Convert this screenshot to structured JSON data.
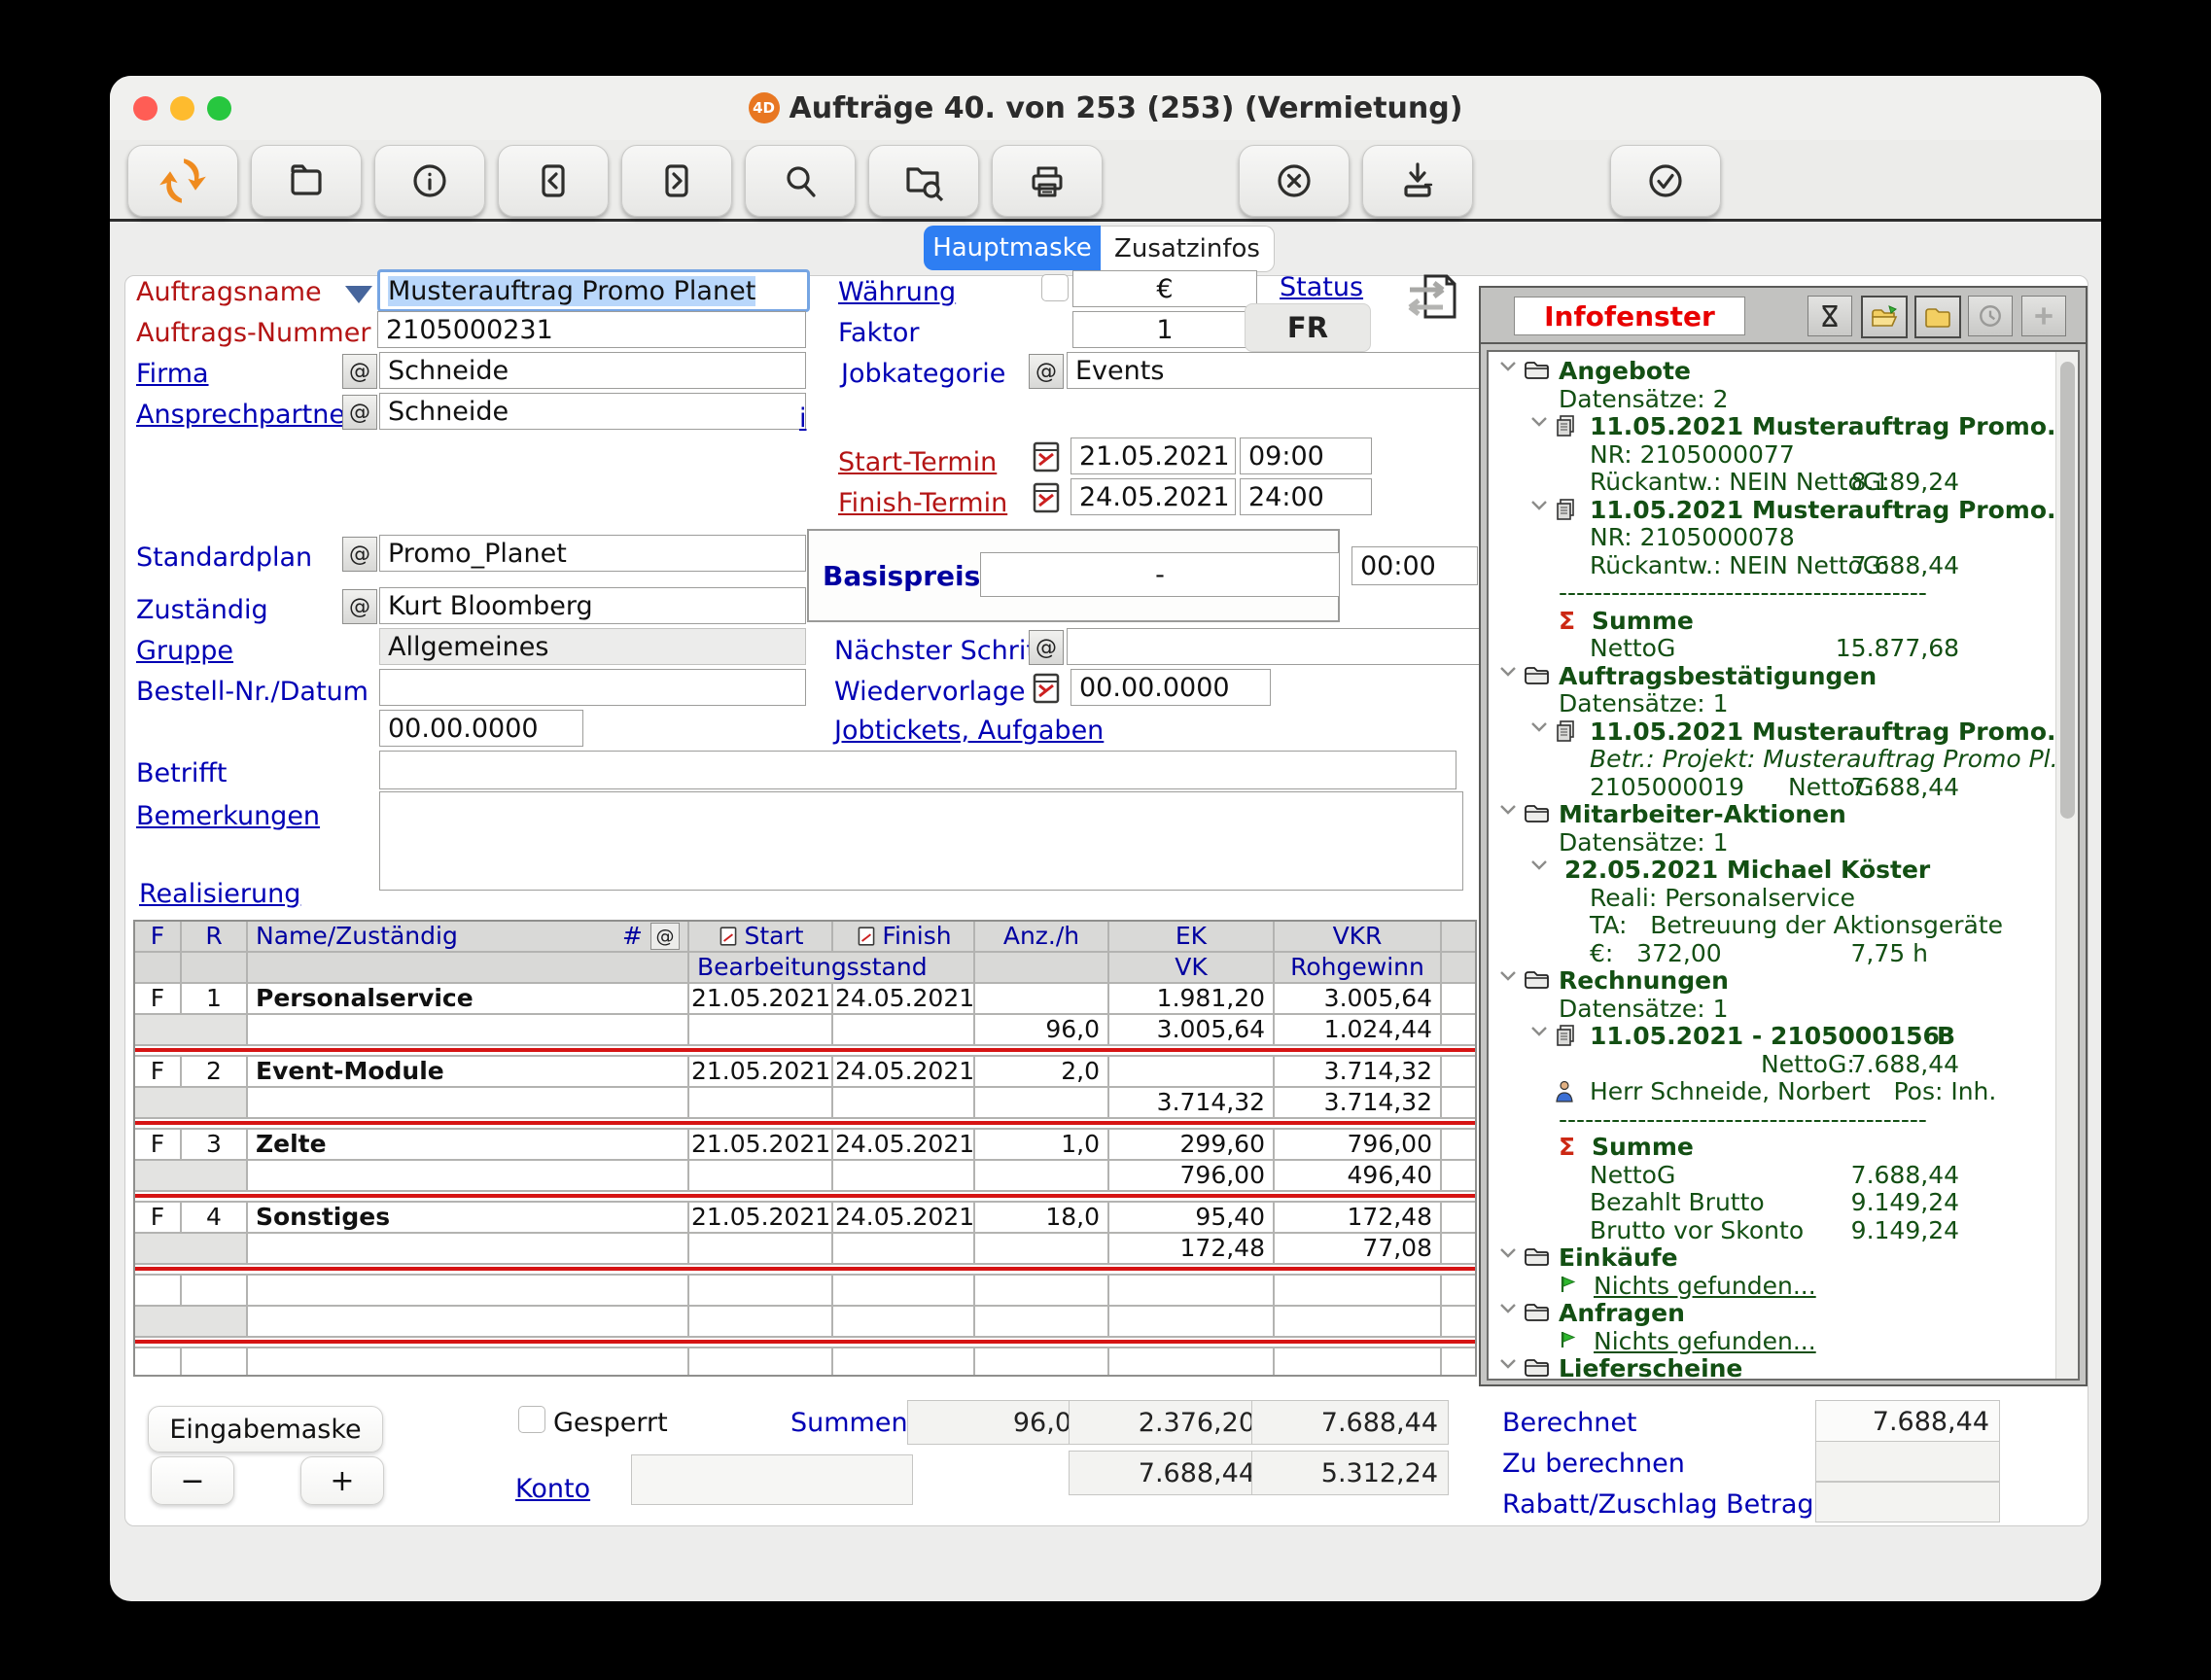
{
  "window": {
    "title": "Aufträge 40. von 253 (253) (Vermietung)",
    "badge": "4D"
  },
  "toolbar": {
    "buttons": [
      {
        "name": "logo-4d-button",
        "icon": "logo-4d-icon"
      },
      {
        "name": "new-record-button",
        "icon": "folder-icon"
      },
      {
        "name": "info-button",
        "icon": "info-icon"
      },
      {
        "name": "previous-record-button",
        "icon": "chevron-left-icon"
      },
      {
        "name": "next-record-button",
        "icon": "chevron-right-icon"
      },
      {
        "name": "search-button",
        "icon": "magnifier-icon"
      },
      {
        "name": "search-folder-button",
        "icon": "folder-magnifier-icon"
      },
      {
        "name": "print-button",
        "icon": "printer-icon"
      },
      {
        "name": "cancel-button",
        "icon": "circle-x-icon"
      },
      {
        "name": "export-button",
        "icon": "download-tray-icon"
      },
      {
        "name": "accept-button",
        "icon": "circle-check-icon"
      }
    ]
  },
  "tabs": {
    "items": [
      {
        "label": "Hauptmaske",
        "active": true
      },
      {
        "label": "Zusatzinfos",
        "active": false
      }
    ]
  },
  "form": {
    "auftragsname": {
      "label": "Auftragsname",
      "value": "Musterauftrag Promo Planet"
    },
    "auftrags_nummer": {
      "label": "Auftrags-Nummer",
      "value": "2105000231"
    },
    "firma": {
      "label": "Firma",
      "value": "Schneide"
    },
    "ansprechpartner": {
      "label": "Ansprechpartner",
      "value": "Schneide",
      "info_link": "i"
    },
    "waehrung": {
      "label": "Währung",
      "value": "€"
    },
    "faktor": {
      "label": "Faktor",
      "value": "1"
    },
    "status": {
      "label": "Status",
      "value": "FR"
    },
    "jobkategorie": {
      "label": "Jobkategorie",
      "value": "Events"
    },
    "start_termin": {
      "label": "Start-Termin",
      "date": "21.05.2021",
      "time": "09:00"
    },
    "finish_termin": {
      "label": "Finish-Termin",
      "date": "24.05.2021",
      "time": "24:00"
    },
    "standardplan": {
      "label": "Standardplan",
      "value": "Promo_Planet"
    },
    "basispreis": {
      "label": "Basispreis",
      "value": "-",
      "time": "00:00"
    },
    "zustaendig": {
      "label": "Zuständig",
      "value": "Kurt Bloomberg"
    },
    "gruppe": {
      "label": "Gruppe",
      "value": "Allgemeines"
    },
    "naechster_schritt": {
      "label": "Nächster Schritt",
      "value": ""
    },
    "bestell": {
      "label": "Bestell-Nr./Datum",
      "value": "",
      "date": "00.00.0000"
    },
    "wiedervorlage": {
      "label": "Wiedervorlage",
      "value": "00.00.0000"
    },
    "jobtickets": {
      "label": "Jobtickets, Aufgaben"
    },
    "betrifft": {
      "label": "Betrifft",
      "value": ""
    },
    "bemerkungen": {
      "label": "Bemerkungen",
      "value": ""
    },
    "realisierung": {
      "label": "Realisierung"
    }
  },
  "table": {
    "header": {
      "f": "F",
      "r": "R",
      "name": "Name/Zuständig",
      "hash": "#",
      "at": "@",
      "start": "Start",
      "finish": "Finish",
      "anz": "Anz./h",
      "ek": "EK",
      "vkr": "VKR",
      "line2": "Bearbeitungsstand",
      "vk": "VK",
      "roh": "Rohgewinn"
    },
    "rows": [
      {
        "f": "F",
        "r": "1",
        "name": "Personalservice",
        "start": "21.05.2021",
        "finish": "24.05.2021",
        "anz1": "",
        "ek": "1.981,20",
        "vkr": "3.005,64",
        "anz2": "96,0",
        "vk": "3.005,64",
        "roh": "1.024,44"
      },
      {
        "f": "F",
        "r": "2",
        "name": "Event-Module",
        "start": "21.05.2021",
        "finish": "24.05.2021",
        "anz1": "2,0",
        "ek": "",
        "vkr": "3.714,32",
        "anz2": "",
        "vk": "3.714,32",
        "roh": "3.714,32"
      },
      {
        "f": "F",
        "r": "3",
        "name": "Zelte",
        "start": "21.05.2021",
        "finish": "24.05.2021",
        "anz1": "1,0",
        "ek": "299,60",
        "vkr": "796,00",
        "anz2": "",
        "vk": "796,00",
        "roh": "496,40"
      },
      {
        "f": "F",
        "r": "4",
        "name": "Sonstiges",
        "start": "21.05.2021",
        "finish": "24.05.2021",
        "anz1": "18,0",
        "ek": "95,40",
        "vkr": "172,48",
        "anz2": "",
        "vk": "172,48",
        "roh": "77,08"
      }
    ],
    "empty_pairs": 3
  },
  "footer": {
    "eingabemaske": "Eingabemaske",
    "minus": "−",
    "plus": "+",
    "gesperrt": "Gesperrt",
    "summen": "Summen",
    "konto": "Konto",
    "sums_row1": [
      "96,0",
      "2.376,20",
      "7.688,44"
    ],
    "sums_row2": [
      "7.688,44",
      "5.312,24"
    ],
    "berechnet_label": "Berechnet",
    "berechnet": "7.688,44",
    "zu_berechnen_label": "Zu berechnen",
    "zu_berechnen": "",
    "rabatt_label": "Rabatt/Zuschlag Betrag",
    "rabatt": ""
  },
  "infofenster": {
    "title": "Infofenster",
    "icons": [
      "hourglass-icon",
      "folder-open-icon",
      "folder-plain-icon",
      "history-icon",
      "add-icon"
    ],
    "tree": [
      {
        "type": "folder",
        "label": "Angebote"
      },
      {
        "type": "text",
        "indent": 1,
        "label": "Datensätze: 2"
      },
      {
        "type": "doc",
        "label": "11.05.2021 Musterauftrag Promo..."
      },
      {
        "type": "text",
        "indent": 2,
        "label": "NR: 2105000077"
      },
      {
        "type": "kv",
        "indent": 2,
        "label": "Rückantw.: NEIN NettoG:",
        "value": "8.189,24"
      },
      {
        "type": "doc",
        "label": "11.05.2021 Musterauftrag Promo..."
      },
      {
        "type": "text",
        "indent": 2,
        "label": "NR: 2105000078"
      },
      {
        "type": "kv",
        "indent": 2,
        "label": "Rückantw.: NEIN NettoG:",
        "value": "7.688,44"
      },
      {
        "type": "dash",
        "label": "------------------------------------------"
      },
      {
        "type": "sum",
        "label": "Summe"
      },
      {
        "type": "kv",
        "indent": 2,
        "label": "NettoG",
        "value": "15.877,68"
      },
      {
        "type": "folder",
        "label": "Auftragsbestätigungen"
      },
      {
        "type": "text",
        "indent": 1,
        "label": "Datensätze: 1"
      },
      {
        "type": "doc",
        "label": "11.05.2021 Musterauftrag Promo..."
      },
      {
        "type": "italic",
        "indent": 2,
        "label": "Betr.: Projekt: Musterauftrag Promo Pl..."
      },
      {
        "type": "kv2",
        "indent": 2,
        "label": "2105000019",
        "mid": "NettoG:",
        "value": "7.688,44"
      },
      {
        "type": "folder",
        "label": "Mitarbeiter-Aktionen"
      },
      {
        "type": "text",
        "indent": 1,
        "label": "Datensätze: 1"
      },
      {
        "type": "docplain",
        "label": "22.05.2021 Michael Köster"
      },
      {
        "type": "text",
        "indent": 2,
        "label": "Reali: Personalservice"
      },
      {
        "type": "text",
        "indent": 2,
        "label": "TA:   Betreuung der Aktionsgeräte"
      },
      {
        "type": "kvh",
        "indent": 2,
        "label": "€:   372,00",
        "value": "7,75 h"
      },
      {
        "type": "folder",
        "label": "Rechnungen"
      },
      {
        "type": "text",
        "indent": 1,
        "label": "Datensätze: 1"
      },
      {
        "type": "doc",
        "label": "11.05.2021 - 2105000156",
        "value": "B"
      },
      {
        "type": "kvc",
        "label": "NettoG:",
        "value": "7.688,44"
      },
      {
        "type": "person",
        "label": "Herr Schneide, Norbert   Pos: Inh."
      },
      {
        "type": "dash",
        "label": "------------------------------------------"
      },
      {
        "type": "sum",
        "label": "Summe"
      },
      {
        "type": "kv",
        "indent": 2,
        "label": "NettoG",
        "value": "7.688,44"
      },
      {
        "type": "kv",
        "indent": 2,
        "label": "Bezahlt Brutto",
        "value": "9.149,24"
      },
      {
        "type": "kv",
        "indent": 2,
        "label": "Brutto vor Skonto",
        "value": "9.149,24"
      },
      {
        "type": "folder",
        "label": "Einkäufe"
      },
      {
        "type": "flag",
        "label": "Nichts gefunden..."
      },
      {
        "type": "folder",
        "label": "Anfragen"
      },
      {
        "type": "flag",
        "label": "Nichts gefunden..."
      },
      {
        "type": "folder",
        "label": "Lieferscheine"
      }
    ]
  }
}
